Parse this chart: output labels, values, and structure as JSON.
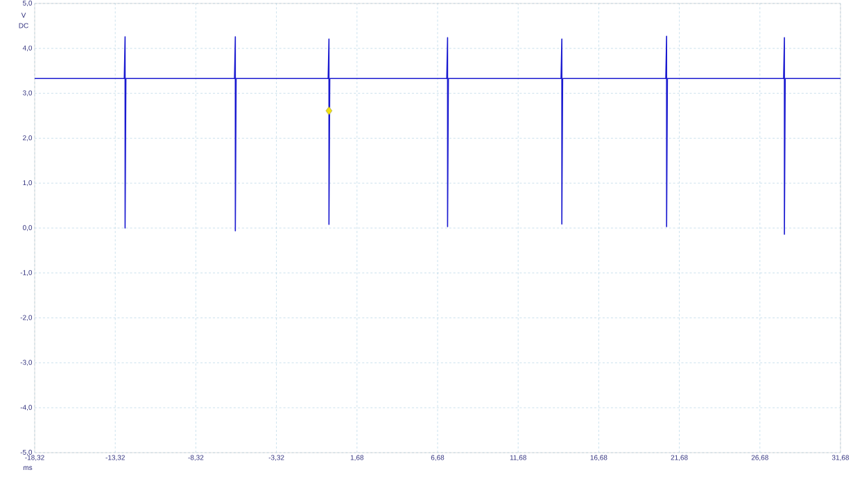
{
  "chart_data": {
    "type": "line",
    "xlabel": "ms",
    "ylabel": "V DC",
    "xlim": [
      -18.32,
      31.68
    ],
    "ylim": [
      -5,
      5
    ],
    "xticks": [
      {
        "value": -18.32,
        "label": "-18,32"
      },
      {
        "value": -13.32,
        "label": "-13,32"
      },
      {
        "value": -8.32,
        "label": "-8,32"
      },
      {
        "value": -3.32,
        "label": "-3,32"
      },
      {
        "value": 1.68,
        "label": "1,68"
      },
      {
        "value": 6.68,
        "label": "6,68"
      },
      {
        "value": 11.68,
        "label": "11,68"
      },
      {
        "value": 16.68,
        "label": "16,68"
      },
      {
        "value": 21.68,
        "label": "21,68"
      },
      {
        "value": 26.68,
        "label": "26,68"
      },
      {
        "value": 31.68,
        "label": "31,68"
      }
    ],
    "yticks": [
      {
        "value": 5,
        "label": "5,0"
      },
      {
        "value": 4,
        "label": "4,0"
      },
      {
        "value": 3,
        "label": "3,0"
      },
      {
        "value": 2,
        "label": "2,0"
      },
      {
        "value": 1,
        "label": "1,0"
      },
      {
        "value": 0,
        "label": "0,0"
      },
      {
        "value": -1,
        "label": "-1,0"
      },
      {
        "value": -2,
        "label": "-2,0"
      },
      {
        "value": -3,
        "label": "-3,0"
      },
      {
        "value": -4,
        "label": "-4,0"
      },
      {
        "value": -5,
        "label": "-5,0"
      }
    ],
    "grid": true,
    "series": [
      {
        "color": "#1a1ad0",
        "x": [
          -18.32,
          -12.76,
          -12.71,
          -12.71,
          -12.66,
          -5.92,
          -5.87,
          -5.87,
          -5.82,
          -0.11,
          -0.06,
          -0.06,
          -0.01,
          7.25,
          7.3,
          7.3,
          7.35,
          14.34,
          14.39,
          14.39,
          14.44,
          20.84,
          20.89,
          20.89,
          20.94,
          28.15,
          28.2,
          28.2,
          28.25,
          31.68
        ],
        "values": [
          3.33,
          3.33,
          4.26,
          0.0,
          3.33,
          3.33,
          4.26,
          -0.06,
          3.33,
          3.33,
          4.21,
          0.08,
          3.33,
          3.33,
          4.24,
          0.03,
          3.33,
          3.33,
          4.21,
          0.09,
          3.33,
          3.33,
          4.27,
          0.03,
          3.33,
          3.33,
          4.24,
          -0.14,
          3.33,
          3.33
        ]
      },
      {
        "type": "scatter",
        "marker": "diamond",
        "color": "#f0e010",
        "x": [
          -0.06
        ],
        "values": [
          2.61
        ]
      }
    ]
  }
}
